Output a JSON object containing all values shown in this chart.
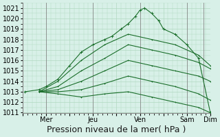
{
  "title": "",
  "xlabel": "Pression niveau de la mer( hPa )",
  "ylabel": "",
  "bg_color": "#d8f0e8",
  "grid_color": "#b0d8c0",
  "line_color": "#1a6e2a",
  "ylim": [
    1011,
    1021
  ],
  "yticks": [
    1011,
    1012,
    1013,
    1014,
    1015,
    1016,
    1017,
    1018,
    1019,
    1020,
    1021
  ],
  "xtick_labels": [
    "",
    "Mer",
    "",
    "Jeu",
    "",
    "Ven",
    "",
    "Sam",
    "Dim"
  ],
  "xtick_positions": [
    0,
    1,
    2,
    3,
    4,
    5,
    6,
    7,
    8
  ],
  "xmin": 0,
  "xmax": 8,
  "fan_origin_x": 0.7,
  "fan_origin_y": 1013.0,
  "lines": [
    {
      "x": [
        0.1,
        0.7,
        1.0,
        1.5,
        2.0,
        2.5,
        3.0,
        3.5,
        3.8,
        4.2,
        4.5,
        4.8,
        5.0,
        5.2,
        5.5,
        5.8,
        6.0,
        6.5,
        7.0,
        7.5,
        8.0
      ],
      "y": [
        1013.0,
        1013.2,
        1013.5,
        1014.2,
        1015.5,
        1016.8,
        1017.5,
        1018.0,
        1018.3,
        1019.0,
        1019.5,
        1020.2,
        1020.8,
        1021.0,
        1020.5,
        1019.8,
        1019.0,
        1018.5,
        1017.5,
        1016.2,
        1011.0
      ]
    },
    {
      "x": [
        0.7,
        1.5,
        2.5,
        3.5,
        4.5,
        5.5,
        6.5,
        7.5,
        8.0
      ],
      "y": [
        1013.0,
        1014.0,
        1016.0,
        1017.5,
        1018.5,
        1018.0,
        1017.5,
        1016.5,
        1015.5
      ]
    },
    {
      "x": [
        0.7,
        1.5,
        2.5,
        3.5,
        4.5,
        5.5,
        6.5,
        7.5,
        8.0
      ],
      "y": [
        1013.0,
        1013.5,
        1015.0,
        1016.2,
        1017.5,
        1017.0,
        1016.5,
        1015.8,
        1015.2
      ]
    },
    {
      "x": [
        0.7,
        1.5,
        2.5,
        3.5,
        4.5,
        5.5,
        6.5,
        7.5,
        8.0
      ],
      "y": [
        1013.0,
        1013.2,
        1014.0,
        1015.0,
        1016.0,
        1015.5,
        1015.0,
        1014.5,
        1014.0
      ]
    },
    {
      "x": [
        0.7,
        1.5,
        2.5,
        3.5,
        4.5,
        5.5,
        6.5,
        7.5,
        8.0
      ],
      "y": [
        1013.0,
        1013.0,
        1013.2,
        1013.8,
        1014.5,
        1014.0,
        1013.5,
        1012.8,
        1012.2
      ]
    },
    {
      "x": [
        0.7,
        1.5,
        2.5,
        3.5,
        4.5,
        5.5,
        6.5,
        7.5,
        8.0
      ],
      "y": [
        1013.0,
        1012.8,
        1012.5,
        1012.8,
        1013.0,
        1012.5,
        1012.0,
        1011.5,
        1011.0
      ]
    }
  ],
  "vertical_lines_x": [
    1.0,
    3.0,
    5.0,
    7.0,
    7.7
  ],
  "xlabel_fontsize": 9,
  "tick_fontsize": 7,
  "marker": "+"
}
